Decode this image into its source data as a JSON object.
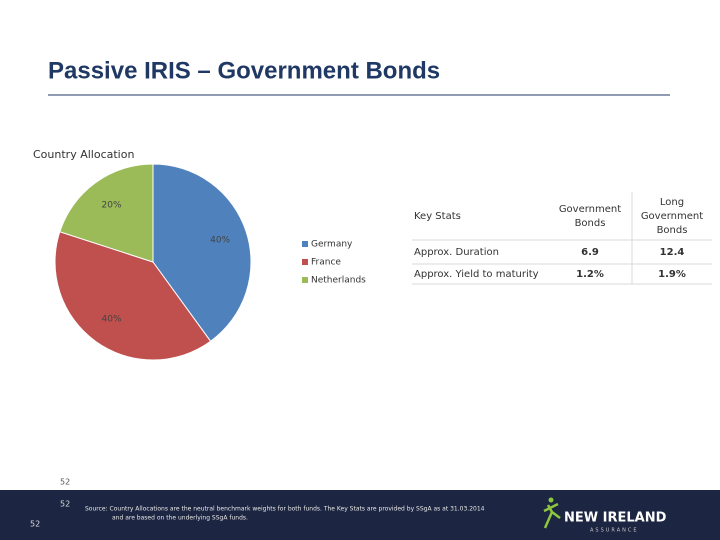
{
  "header": {
    "title": "Passive IRIS –  Government Bonds"
  },
  "chart_data": {
    "type": "pie",
    "title": "Country Allocation",
    "categories": [
      "Germany",
      "France",
      "Netherlands"
    ],
    "values": [
      40,
      40,
      20
    ],
    "value_labels": [
      "40%",
      "40%",
      "20%"
    ],
    "colors": [
      "#4f81bd",
      "#c0504d",
      "#9bbb59"
    ],
    "legend": "right"
  },
  "table": {
    "header": [
      "Key Stats",
      "Government Bonds",
      "Long Government Bonds"
    ],
    "rows": [
      [
        "Approx. Duration",
        "6.9",
        "12.4"
      ],
      [
        "Approx. Yield to maturity",
        "1.2%",
        "1.9%"
      ]
    ]
  },
  "footer": {
    "page": "52",
    "page_corner": "52",
    "source": [
      "Source: Country Allocations are the neutral benchmark weights for both funds. The Key Stats are provided by SSgA as at 31.03.2014",
      "and are based on the underlying SSgA funds."
    ],
    "logo": "NEW IRELAND",
    "logo_sub": "ASSURANCE"
  }
}
